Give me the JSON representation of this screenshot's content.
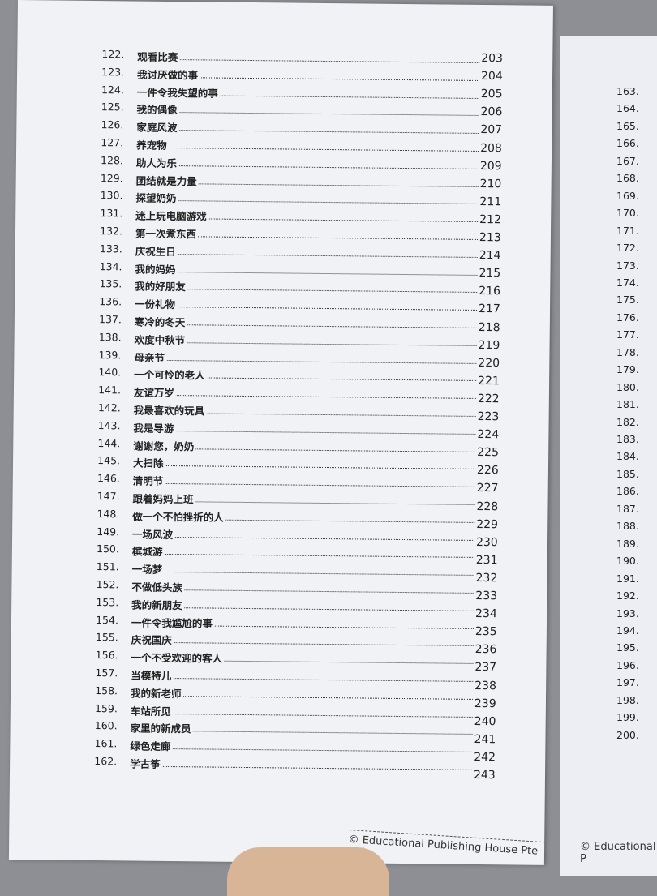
{
  "left_page": {
    "entries": [
      {
        "number": "122.",
        "title": "观看比赛",
        "page": "203"
      },
      {
        "number": "123.",
        "title": "我讨厌做的事",
        "page": "204"
      },
      {
        "number": "124.",
        "title": "一件令我失望的事",
        "page": "205"
      },
      {
        "number": "125.",
        "title": "我的偶像",
        "page": "206"
      },
      {
        "number": "126.",
        "title": "家庭风波",
        "page": "207"
      },
      {
        "number": "127.",
        "title": "养宠物",
        "page": "208"
      },
      {
        "number": "128.",
        "title": "助人为乐",
        "page": "209"
      },
      {
        "number": "129.",
        "title": "团结就是力量",
        "page": "210"
      },
      {
        "number": "130.",
        "title": "探望奶奶",
        "page": "211"
      },
      {
        "number": "131.",
        "title": "迷上玩电脑游戏",
        "page": "212"
      },
      {
        "number": "132.",
        "title": "第一次煮东西",
        "page": "213"
      },
      {
        "number": "133.",
        "title": "庆祝生日",
        "page": "214"
      },
      {
        "number": "134.",
        "title": "我的妈妈",
        "page": "215"
      },
      {
        "number": "135.",
        "title": "我的好朋友",
        "page": "216"
      },
      {
        "number": "136.",
        "title": "一份礼物",
        "page": "217"
      },
      {
        "number": "137.",
        "title": "寒冷的冬天",
        "page": "218"
      },
      {
        "number": "138.",
        "title": "欢度中秋节",
        "page": "219"
      },
      {
        "number": "139.",
        "title": "母亲节",
        "page": "220"
      },
      {
        "number": "140.",
        "title": "一个可怜的老人",
        "page": "221"
      },
      {
        "number": "141.",
        "title": "友谊万岁",
        "page": "222"
      },
      {
        "number": "142.",
        "title": "我最喜欢的玩具",
        "page": "223"
      },
      {
        "number": "143.",
        "title": "我是导游",
        "page": "224"
      },
      {
        "number": "144.",
        "title": "谢谢您，奶奶",
        "page": "225"
      },
      {
        "number": "145.",
        "title": "大扫除",
        "page": "226"
      },
      {
        "number": "146.",
        "title": "清明节",
        "page": "227"
      },
      {
        "number": "147.",
        "title": "跟着妈妈上班",
        "page": "228"
      },
      {
        "number": "148.",
        "title": "做一个不怕挫折的人",
        "page": "229"
      },
      {
        "number": "149.",
        "title": "一场风波",
        "page": "230"
      },
      {
        "number": "150.",
        "title": "槟城游",
        "page": "231"
      },
      {
        "number": "151.",
        "title": "一场梦",
        "page": "232"
      },
      {
        "number": "152.",
        "title": "不做低头族",
        "page": "233"
      },
      {
        "number": "153.",
        "title": "我的新朋友",
        "page": "234"
      },
      {
        "number": "154.",
        "title": "一件令我尴尬的事",
        "page": "235"
      },
      {
        "number": "155.",
        "title": "庆祝国庆",
        "page": "236"
      },
      {
        "number": "156.",
        "title": "一个不受欢迎的客人",
        "page": "237"
      },
      {
        "number": "157.",
        "title": "当模特儿",
        "page": "238"
      },
      {
        "number": "158.",
        "title": "我的新老师",
        "page": "239"
      },
      {
        "number": "159.",
        "title": "车站所见",
        "page": "240"
      },
      {
        "number": "160.",
        "title": "家里的新成员",
        "page": "241"
      },
      {
        "number": "161.",
        "title": "绿色走廊",
        "page": "242"
      },
      {
        "number": "162.",
        "title": "学古筝",
        "page": "243"
      }
    ],
    "footer": "© Educational Publishing House Pte Ltd"
  },
  "right_page": {
    "numbers": [
      "163.",
      "164.",
      "165.",
      "166.",
      "167.",
      "168.",
      "169.",
      "170.",
      "171.",
      "172.",
      "173.",
      "174.",
      "175.",
      "176.",
      "177.",
      "178.",
      "179.",
      "180.",
      "181.",
      "182.",
      "183.",
      "184.",
      "185.",
      "186.",
      "187.",
      "188.",
      "189.",
      "190.",
      "191.",
      "192.",
      "193.",
      "194.",
      "195.",
      "196.",
      "197.",
      "198.",
      "199.",
      "200."
    ],
    "footer": "© Educational P"
  }
}
